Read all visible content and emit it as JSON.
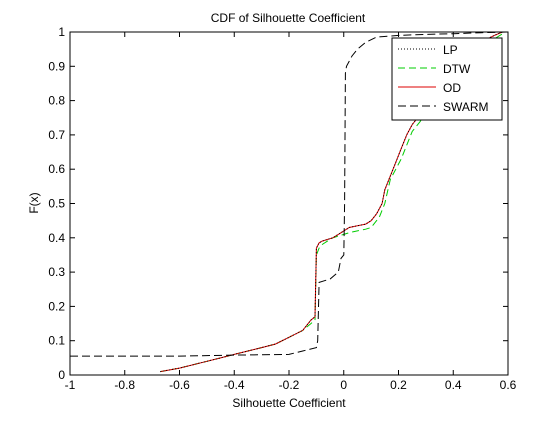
{
  "chart_data": {
    "type": "line",
    "title": "CDF of Silhouette Coefficient",
    "xlabel": "Silhouette Coefficient",
    "ylabel": "F(x)",
    "xlim": [
      -1,
      0.6
    ],
    "ylim": [
      0,
      1
    ],
    "xticks": [
      -1,
      -0.8,
      -0.6,
      -0.4,
      -0.2,
      0,
      0.2,
      0.4,
      0.6
    ],
    "xtick_labels": [
      "-1",
      "-0.8",
      "-0.6",
      "-0.4",
      "-0.2",
      "0",
      "0.2",
      "0.4",
      "0.6"
    ],
    "yticks": [
      0,
      0.1,
      0.2,
      0.3,
      0.4,
      0.5,
      0.6,
      0.7,
      0.8,
      0.9,
      1
    ],
    "ytick_labels": [
      "0",
      "0.1",
      "0.2",
      "0.3",
      "0.4",
      "0.5",
      "0.6",
      "0.7",
      "0.8",
      "0.9",
      "1"
    ],
    "grid": false,
    "legend_position": "top-right",
    "series": [
      {
        "name": "LP",
        "color": "#000000",
        "dash": "dotted",
        "x": [
          -0.67,
          -0.6,
          -0.5,
          -0.45,
          -0.4,
          -0.35,
          -0.3,
          -0.25,
          -0.2,
          -0.15,
          -0.12,
          -0.105,
          -0.1,
          -0.09,
          -0.08,
          -0.06,
          -0.04,
          -0.02,
          0,
          0.02,
          0.05,
          0.08,
          0.1,
          0.12,
          0.14,
          0.15,
          0.17,
          0.19,
          0.21,
          0.23,
          0.25,
          0.28,
          0.3,
          0.33,
          0.36,
          0.4,
          0.45,
          0.5,
          0.55,
          0.58
        ],
        "y": [
          0.01,
          0.02,
          0.04,
          0.05,
          0.06,
          0.07,
          0.08,
          0.09,
          0.11,
          0.13,
          0.16,
          0.17,
          0.37,
          0.385,
          0.39,
          0.395,
          0.4,
          0.41,
          0.42,
          0.43,
          0.435,
          0.44,
          0.45,
          0.47,
          0.5,
          0.54,
          0.58,
          0.62,
          0.66,
          0.7,
          0.73,
          0.76,
          0.8,
          0.84,
          0.88,
          0.92,
          0.95,
          0.97,
          0.99,
          1.0
        ]
      },
      {
        "name": "DTW",
        "color": "#00cc00",
        "dash": "dashed",
        "x": [
          -0.67,
          -0.6,
          -0.5,
          -0.45,
          -0.4,
          -0.35,
          -0.3,
          -0.25,
          -0.2,
          -0.15,
          -0.12,
          -0.105,
          -0.1,
          -0.09,
          -0.08,
          -0.06,
          -0.04,
          -0.02,
          0,
          0.02,
          0.05,
          0.08,
          0.1,
          0.13,
          0.15,
          0.17,
          0.19,
          0.21,
          0.23,
          0.25,
          0.28,
          0.3,
          0.33,
          0.36,
          0.4,
          0.45,
          0.5,
          0.55,
          0.59
        ],
        "y": [
          0.01,
          0.02,
          0.04,
          0.05,
          0.06,
          0.07,
          0.08,
          0.09,
          0.11,
          0.13,
          0.15,
          0.16,
          0.35,
          0.37,
          0.38,
          0.39,
          0.4,
          0.405,
          0.41,
          0.415,
          0.42,
          0.425,
          0.43,
          0.46,
          0.5,
          0.57,
          0.6,
          0.63,
          0.67,
          0.71,
          0.74,
          0.77,
          0.81,
          0.85,
          0.89,
          0.93,
          0.96,
          0.98,
          1.0
        ]
      },
      {
        "name": "OD",
        "color": "#dd0000",
        "dash": "solid",
        "x": [
          -0.67,
          -0.6,
          -0.5,
          -0.45,
          -0.4,
          -0.35,
          -0.3,
          -0.25,
          -0.2,
          -0.15,
          -0.12,
          -0.105,
          -0.1,
          -0.09,
          -0.08,
          -0.06,
          -0.04,
          -0.02,
          0,
          0.02,
          0.05,
          0.08,
          0.1,
          0.12,
          0.14,
          0.15,
          0.17,
          0.19,
          0.21,
          0.23,
          0.25,
          0.28,
          0.3,
          0.33,
          0.36,
          0.4,
          0.45,
          0.5,
          0.55,
          0.58
        ],
        "y": [
          0.01,
          0.02,
          0.04,
          0.05,
          0.06,
          0.07,
          0.08,
          0.09,
          0.11,
          0.13,
          0.16,
          0.17,
          0.37,
          0.385,
          0.39,
          0.395,
          0.4,
          0.41,
          0.42,
          0.43,
          0.435,
          0.44,
          0.45,
          0.47,
          0.5,
          0.54,
          0.58,
          0.62,
          0.66,
          0.7,
          0.73,
          0.76,
          0.8,
          0.84,
          0.88,
          0.92,
          0.95,
          0.97,
          0.99,
          1.0
        ]
      },
      {
        "name": "SWARM",
        "color": "#000000",
        "dash": "longdash",
        "x": [
          -1.0,
          -0.6,
          -0.4,
          -0.2,
          -0.15,
          -0.1,
          -0.095,
          -0.09,
          -0.05,
          -0.02,
          -0.01,
          0,
          0.003,
          0.006,
          0.01,
          0.03,
          0.05,
          0.08,
          0.12,
          0.2,
          0.3,
          0.4,
          0.5,
          0.6
        ],
        "y": [
          0.055,
          0.055,
          0.058,
          0.06,
          0.07,
          0.08,
          0.1,
          0.27,
          0.28,
          0.3,
          0.34,
          0.35,
          0.5,
          0.88,
          0.9,
          0.93,
          0.95,
          0.97,
          0.985,
          0.99,
          0.993,
          0.995,
          0.998,
          1.0
        ]
      }
    ]
  }
}
